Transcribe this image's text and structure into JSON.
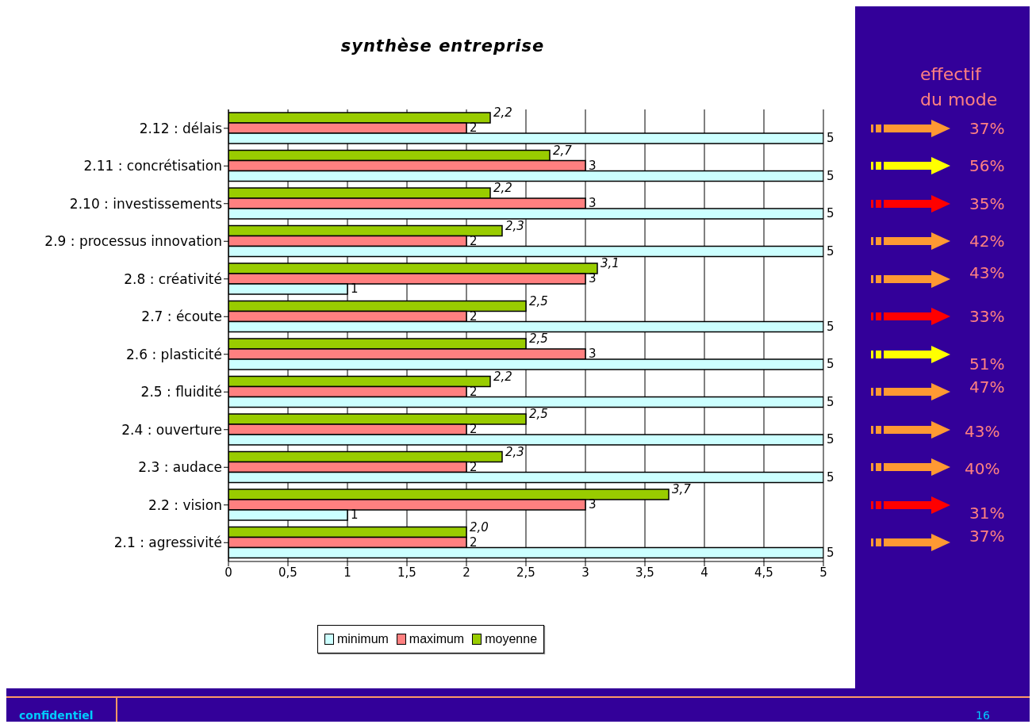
{
  "chart_data": [
    {
      "type": "bar",
      "orientation": "horizontal",
      "title": "synthèse entreprise",
      "categories": [
        "2.12 : délais",
        "2.11 : concrétisation",
        "2.10 : investissements",
        "2.9 : processus innovation",
        "2.8 : créativité",
        "2.7 : écoute",
        "2.6 : plasticité",
        "2.5 : fluidité",
        "2.4 : ouverture",
        "2.3 : audace",
        "2.2 : vision",
        "2.1 : agressivité"
      ],
      "series": [
        {
          "name": "minimum",
          "color": "#ccffff",
          "values": [
            5,
            5,
            5,
            5,
            1,
            5,
            5,
            5,
            5,
            5,
            1,
            5
          ],
          "value_labels": [
            "5",
            "5",
            "5",
            "5",
            "1",
            "5",
            "5",
            "5",
            "5",
            "5",
            "1",
            "5"
          ]
        },
        {
          "name": "maximum",
          "color": "#ff8080",
          "values": [
            2,
            3,
            3,
            2,
            3,
            2,
            3,
            2,
            2,
            2,
            3,
            2
          ],
          "value_labels": [
            "2",
            "3",
            "3",
            "2",
            "3",
            "2",
            "3",
            "2",
            "2",
            "2",
            "3",
            "2"
          ]
        },
        {
          "name": "moyenne",
          "color": "#99cc00",
          "values": [
            2.2,
            2.7,
            2.2,
            2.3,
            3.1,
            2.5,
            2.5,
            2.2,
            2.5,
            2.3,
            3.7,
            2.0
          ],
          "value_labels": [
            "2,2",
            "2,7",
            "2,2",
            "2,3",
            "3,1",
            "2,5",
            "2,5",
            "2,2",
            "2,5",
            "2,3",
            "3,7",
            "2,0"
          ]
        }
      ],
      "xlim": [
        0,
        5
      ],
      "xticks": [
        0,
        {
          "value": 0.5,
          "label": "0,5"
        },
        1,
        {
          "value": 1.5,
          "label": "1,5"
        },
        2,
        {
          "value": 2.5,
          "label": "2,5"
        },
        3,
        {
          "value": 3.5,
          "label": "3,5"
        },
        4,
        {
          "value": 4.5,
          "label": "4,5"
        },
        5
      ],
      "grid": "x",
      "legend": "bottom",
      "annotations": [
        "confidentiel",
        "16"
      ]
    },
    {
      "type": "other",
      "title": "effectif du mode",
      "annotations": [
        "37%",
        "56%",
        "35%",
        "42%",
        "43%",
        "33%",
        "51%",
        "47%",
        "43%",
        "40%",
        "31%",
        "37%"
      ],
      "colors": [
        "#ff9933",
        "#ffff00",
        "#ff0000",
        "#ff9933",
        "#ff9933",
        "#ff0000",
        "#ffff00",
        "#ff9933",
        "#ff9933",
        "#ff9933",
        "#ff0000",
        "#ff9933"
      ]
    }
  ]
}
